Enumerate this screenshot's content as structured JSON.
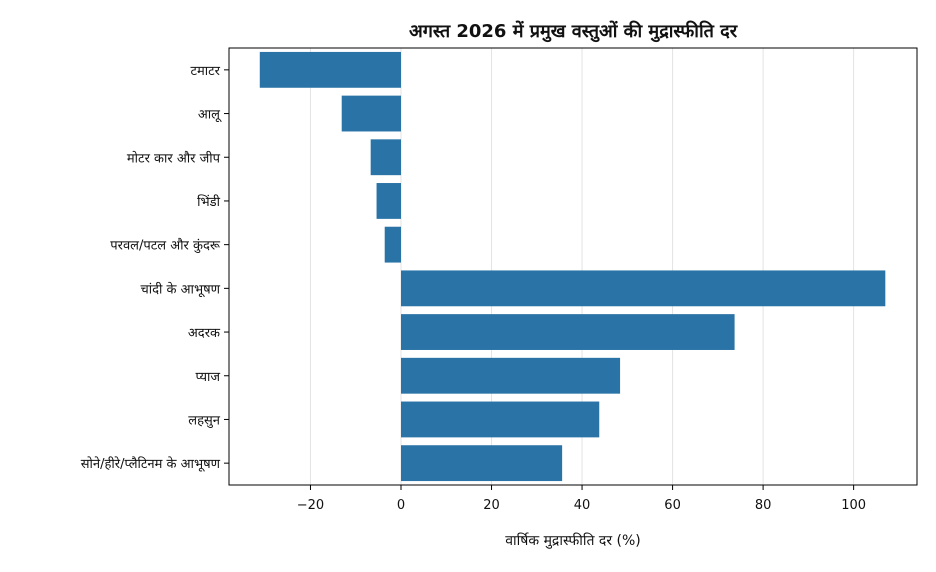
{
  "chart_data": {
    "type": "bar",
    "orientation": "horizontal",
    "title": "अगस्त 2026 में प्रमुख वस्तुओं की मुद्रास्फीति दर",
    "xlabel": "वार्षिक मुद्रास्फीति दर (%)",
    "ylabel": "",
    "categories": [
      "टमाटर",
      "आलू",
      "मोटर कार और जीप",
      "भिंडी",
      "परवल/पटल और कुंदरू",
      "चांदी के आभूषण",
      "अदरक",
      "प्याज",
      "लहसुन",
      "सोने/हीरे/प्लैटिनम के आभूषण"
    ],
    "values": [
      -31.2,
      -13.1,
      -6.7,
      -5.4,
      -3.6,
      107.0,
      73.7,
      48.4,
      43.8,
      35.6
    ],
    "xlim": [
      -38,
      114
    ],
    "xticks": [
      -20,
      0,
      20,
      40,
      60,
      80,
      100
    ],
    "xtick_labels": [
      "−20",
      "0",
      "20",
      "40",
      "60",
      "80",
      "100"
    ],
    "grid": "vertical",
    "colors": {
      "bar": "#2a73a6",
      "grid": "#e3e3e3",
      "axis": "#000000"
    }
  }
}
